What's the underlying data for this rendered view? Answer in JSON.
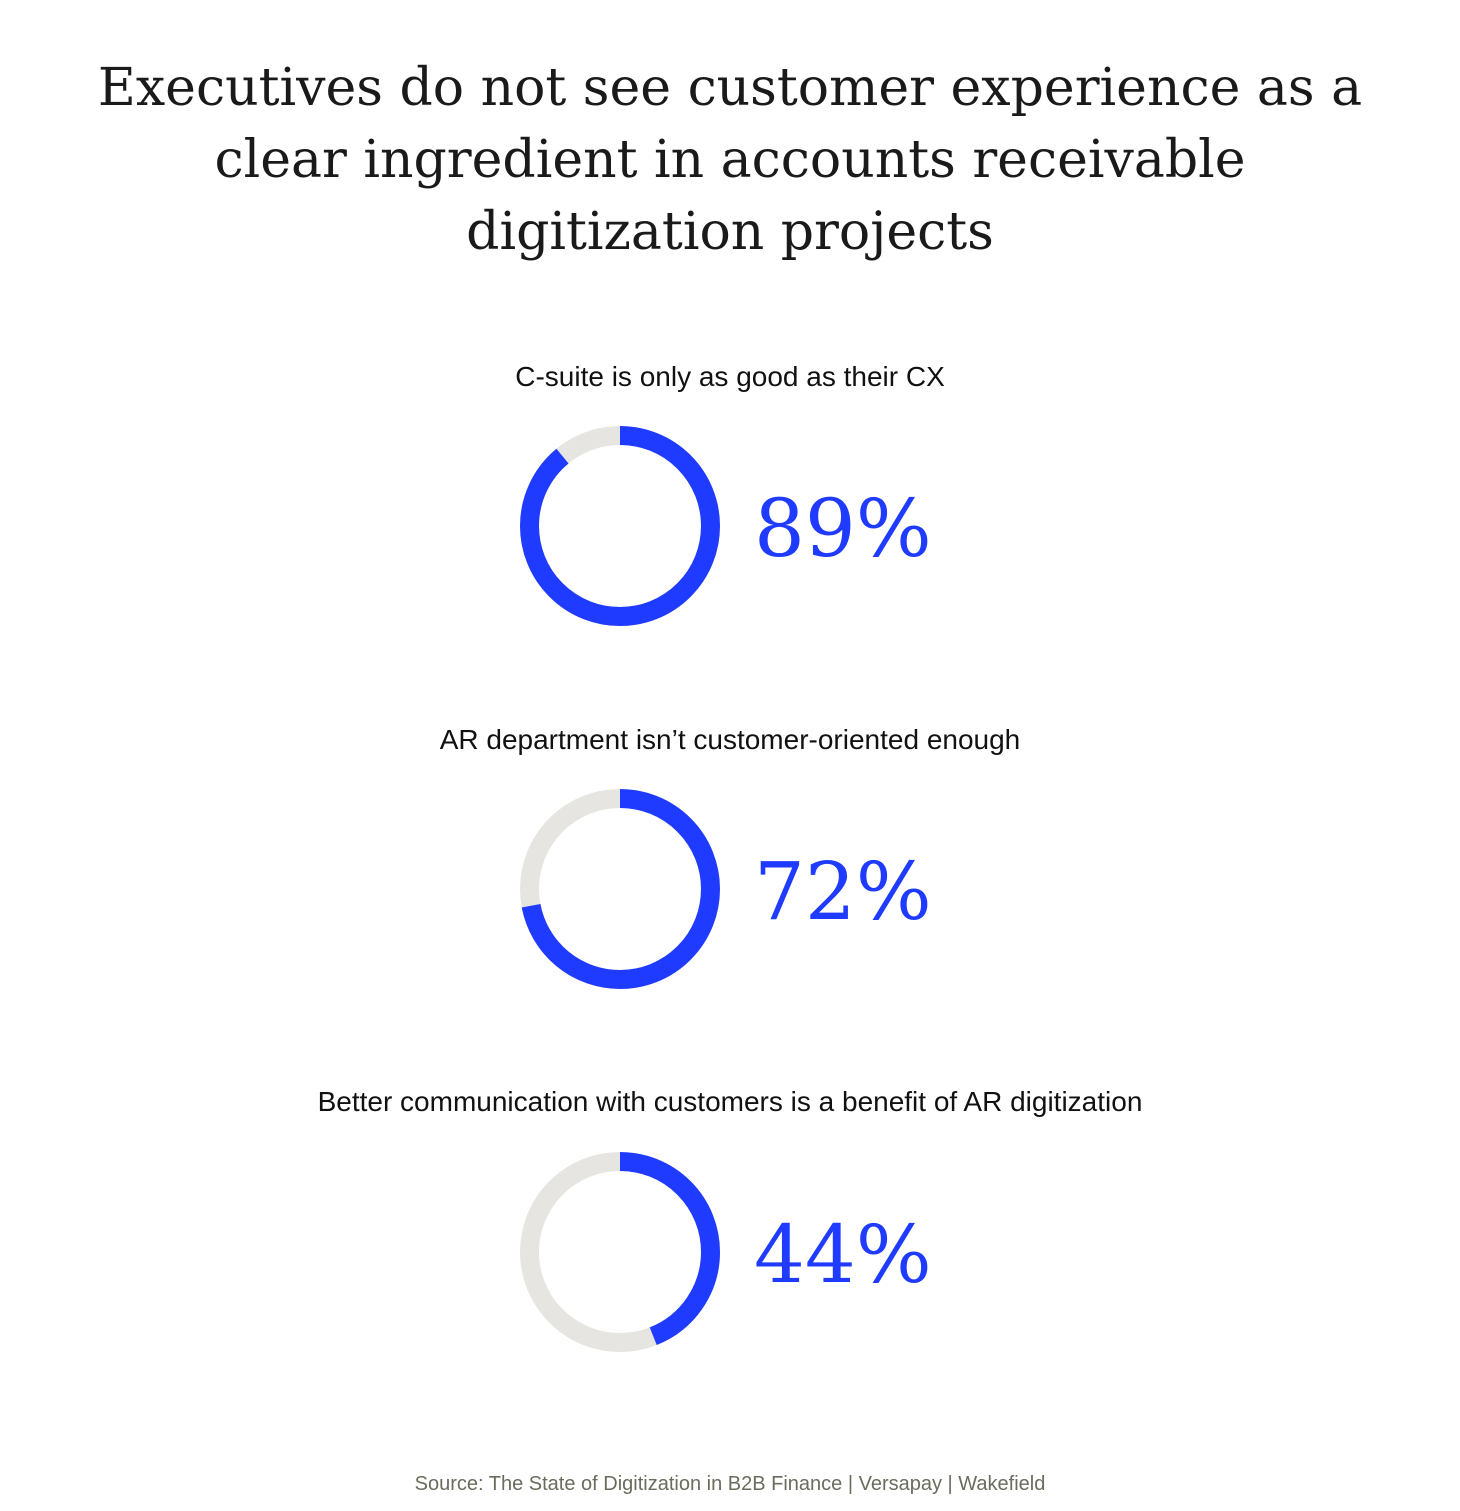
{
  "title_lines": [
    "Executives do not see customer experience as a",
    "clear ingredient in accounts receivable",
    "digitization projects"
  ],
  "colors": {
    "accent": "#1f3bff",
    "track": "#e6e5e1"
  },
  "chart_data": {
    "type": "donut",
    "title": "Executives do not see customer experience as a clear ingredient in accounts receivable digitization projects",
    "items": [
      {
        "label": "C-suite is only as good as their CX",
        "value": 89,
        "value_label": "89%"
      },
      {
        "label": "AR department isn’t customer-oriented enough",
        "value": 72,
        "value_label": "72%"
      },
      {
        "label": "Better communication with customers is a benefit of AR digitization",
        "value": 44,
        "value_label": "44%"
      }
    ]
  },
  "source": "Source: The State of Digitization in B2B Finance | Versapay | Wakefield"
}
